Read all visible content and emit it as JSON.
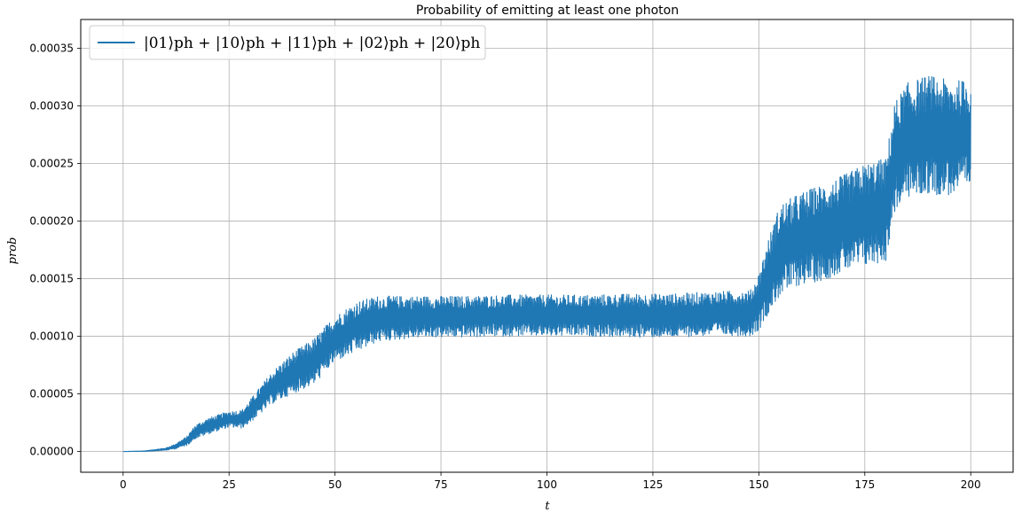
{
  "chart_data": {
    "type": "line",
    "title": "Probability of emitting at least one photon",
    "xlabel": "t",
    "ylabel": "prob",
    "xlim": [
      -10,
      210
    ],
    "ylim": [
      -1.8e-05,
      0.000375
    ],
    "xticks": [
      0,
      25,
      50,
      75,
      100,
      125,
      150,
      175,
      200
    ],
    "xtick_labels": [
      "0",
      "25",
      "50",
      "75",
      "100",
      "125",
      "150",
      "175",
      "200"
    ],
    "yticks": [
      0,
      5e-05,
      0.0001,
      0.00015,
      0.0002,
      0.00025,
      0.0003,
      0.00035
    ],
    "ytick_labels": [
      "0.00000",
      "0.00005",
      "0.00010",
      "0.00015",
      "0.00020",
      "0.00025",
      "0.00030",
      "0.00035"
    ],
    "grid": true,
    "legend_position": "top-left",
    "series": [
      {
        "name": "|01⟩ph + |10⟩ph + |11⟩ph + |02⟩ph + |20⟩ph",
        "color": "#1f77b4",
        "note_style": "dense oscillating signal; envelope given as center/band",
        "x": [
          0,
          5,
          10,
          12,
          15,
          17,
          20,
          25,
          28,
          30,
          35,
          40,
          45,
          50,
          55,
          60,
          70,
          80,
          90,
          100,
          110,
          120,
          130,
          140,
          148,
          150,
          152,
          155,
          160,
          165,
          170,
          175,
          180,
          182,
          185,
          190,
          195,
          200
        ],
        "center": [
          0,
          3e-07,
          2e-06,
          4e-06,
          9e-06,
          1.7e-05,
          2.2e-05,
          2.8e-05,
          2.8e-05,
          3.5e-05,
          5.5e-05,
          6.8e-05,
          7.8e-05,
          9.8e-05,
          0.000108,
          0.000115,
          0.000117,
          0.000117,
          0.000118,
          0.000118,
          0.000118,
          0.000118,
          0.000118,
          0.00012,
          0.00012,
          0.00013,
          0.00015,
          0.000175,
          0.000185,
          0.00019,
          0.000198,
          0.000205,
          0.00021,
          0.000255,
          0.00027,
          0.000275,
          0.000272,
          0.000275
        ],
        "band": [
          0,
          2e-07,
          1e-06,
          2e-06,
          4e-06,
          6e-06,
          7e-06,
          7e-06,
          8e-06,
          1e-05,
          1.4e-05,
          1.8e-05,
          2e-05,
          2e-05,
          2.2e-05,
          2e-05,
          1.8e-05,
          1.8e-05,
          1.8e-05,
          1.8e-05,
          1.8e-05,
          1.9e-05,
          1.9e-05,
          1.9e-05,
          2e-05,
          2.5e-05,
          3.2e-05,
          4e-05,
          4e-05,
          4.2e-05,
          4.2e-05,
          4.5e-05,
          4.5e-05,
          4.8e-05,
          5e-05,
          5.2e-05,
          5e-05,
          4.8e-05
        ]
      }
    ]
  }
}
